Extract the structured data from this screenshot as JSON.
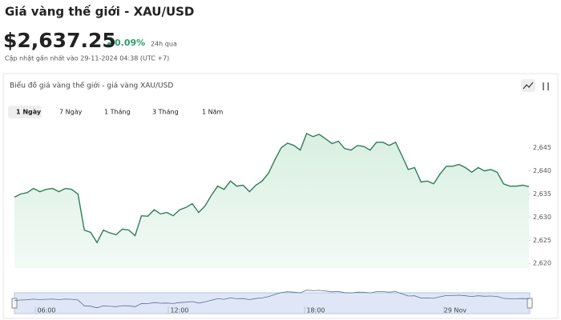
{
  "header": {
    "title": "Giá vàng thế giới - XAU/USD",
    "price": "$2,637.25",
    "change": "0.09%",
    "change_period": "24h qua",
    "updated": "Cập nhật gần nhất vào 29-11-2024 04:38 (UTC +7)"
  },
  "panel": {
    "title": "Biểu đồ giá vàng thế giới - giá vàng XAU/USD",
    "tabs": [
      "1 Ngày",
      "7 Ngày",
      "1 Tháng",
      "3 Tháng",
      "1 Năm"
    ]
  },
  "chart_data": {
    "type": "area",
    "color": "#2e7d5b",
    "values": [
      2634.3,
      2635.0,
      2635.3,
      2636.2,
      2635.5,
      2636.0,
      2636.2,
      2635.5,
      2636.2,
      2636.0,
      2635.0,
      2627.2,
      2626.7,
      2624.5,
      2627.2,
      2626.6,
      2626.2,
      2627.4,
      2627.2,
      2626.0,
      2630.3,
      2630.2,
      2631.6,
      2630.7,
      2631.0,
      2630.3,
      2631.6,
      2632.1,
      2632.9,
      2631.0,
      2632.4,
      2634.7,
      2636.7,
      2636.0,
      2637.8,
      2636.7,
      2636.9,
      2635.5,
      2636.9,
      2637.8,
      2639.5,
      2642.4,
      2645.0,
      2646.0,
      2645.5,
      2644.5,
      2648.1,
      2647.4,
      2647.9,
      2646.9,
      2645.9,
      2646.4,
      2644.8,
      2644.5,
      2645.5,
      2645.3,
      2644.5,
      2646.2,
      2646.2,
      2645.5,
      2646.2,
      2643.3,
      2640.3,
      2640.7,
      2637.6,
      2637.8,
      2637.2,
      2639.3,
      2641.0,
      2641.0,
      2641.4,
      2640.7,
      2639.7,
      2640.7,
      2640.0,
      2640.3,
      2639.7,
      2637.2,
      2636.7,
      2636.7,
      2636.9,
      2636.6
    ],
    "ylim": [
      2619,
      2651
    ],
    "yticks": [
      {
        "value": 2620,
        "label": "2,620"
      },
      {
        "value": 2625,
        "label": "2,625"
      },
      {
        "value": 2630,
        "label": "2,630"
      },
      {
        "value": 2635,
        "label": "2,635"
      },
      {
        "value": 2640,
        "label": "2,640"
      },
      {
        "value": 2645,
        "label": "2,645"
      }
    ],
    "navigator_labels": [
      "06:00",
      "12:00",
      "18:00",
      "29 Nov"
    ]
  }
}
